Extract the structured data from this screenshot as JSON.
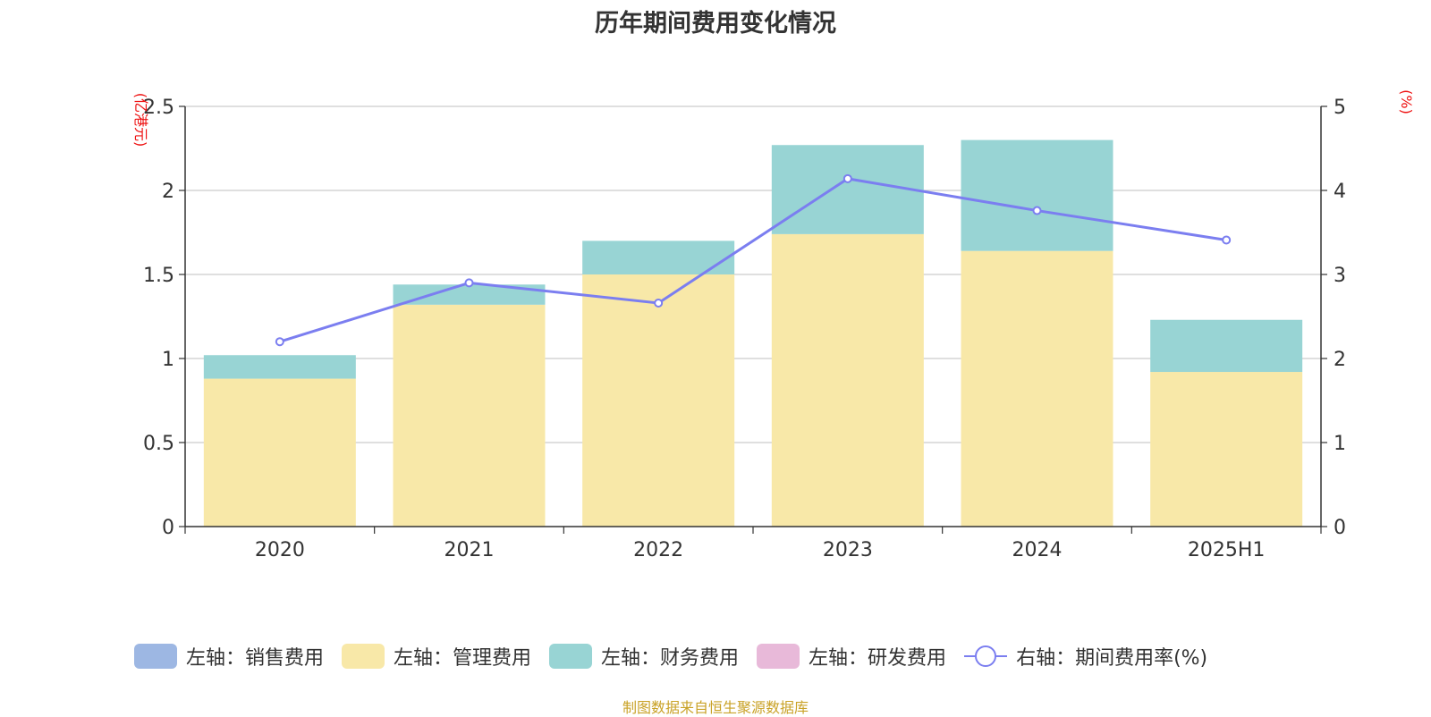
{
  "chart_data": {
    "type": "bar",
    "title": "历年期间费用变化情况",
    "categories": [
      "2020",
      "2021",
      "2022",
      "2023",
      "2024",
      "2025H1"
    ],
    "y_left": {
      "unit": "(亿港元)",
      "range": [
        0,
        2.5
      ],
      "ticks": [
        "0",
        "0.5",
        "1",
        "1.5",
        "2",
        "2.5"
      ]
    },
    "y_right": {
      "unit": "(%)",
      "range": [
        0,
        5
      ],
      "ticks": [
        "0",
        "1",
        "2",
        "3",
        "4",
        "5"
      ]
    },
    "series": [
      {
        "name": "左轴：销售费用",
        "type": "bar",
        "axis": "left",
        "color": "#9db7e3",
        "values": [
          0,
          0,
          0,
          0,
          0,
          0
        ]
      },
      {
        "name": "左轴：管理费用",
        "type": "bar",
        "axis": "left",
        "color": "#f8e8a8",
        "values": [
          0.88,
          1.32,
          1.5,
          1.74,
          1.64,
          0.92
        ]
      },
      {
        "name": "左轴：财务费用",
        "type": "bar",
        "axis": "left",
        "color": "#98d4d4",
        "values": [
          0.14,
          0.12,
          0.2,
          0.53,
          0.66,
          0.31
        ]
      },
      {
        "name": "左轴：研发费用",
        "type": "bar",
        "axis": "left",
        "color": "#e8b9d9",
        "values": [
          0,
          0,
          0,
          0,
          0,
          0
        ]
      },
      {
        "name": "右轴：期间费用率(%)",
        "type": "line",
        "axis": "right",
        "color": "#7b7ef0",
        "values": [
          2.2,
          2.9,
          2.66,
          4.14,
          3.76,
          3.41
        ]
      }
    ],
    "grid": true,
    "legend": "bottom"
  },
  "source": "制图数据来自恒生聚源数据库"
}
